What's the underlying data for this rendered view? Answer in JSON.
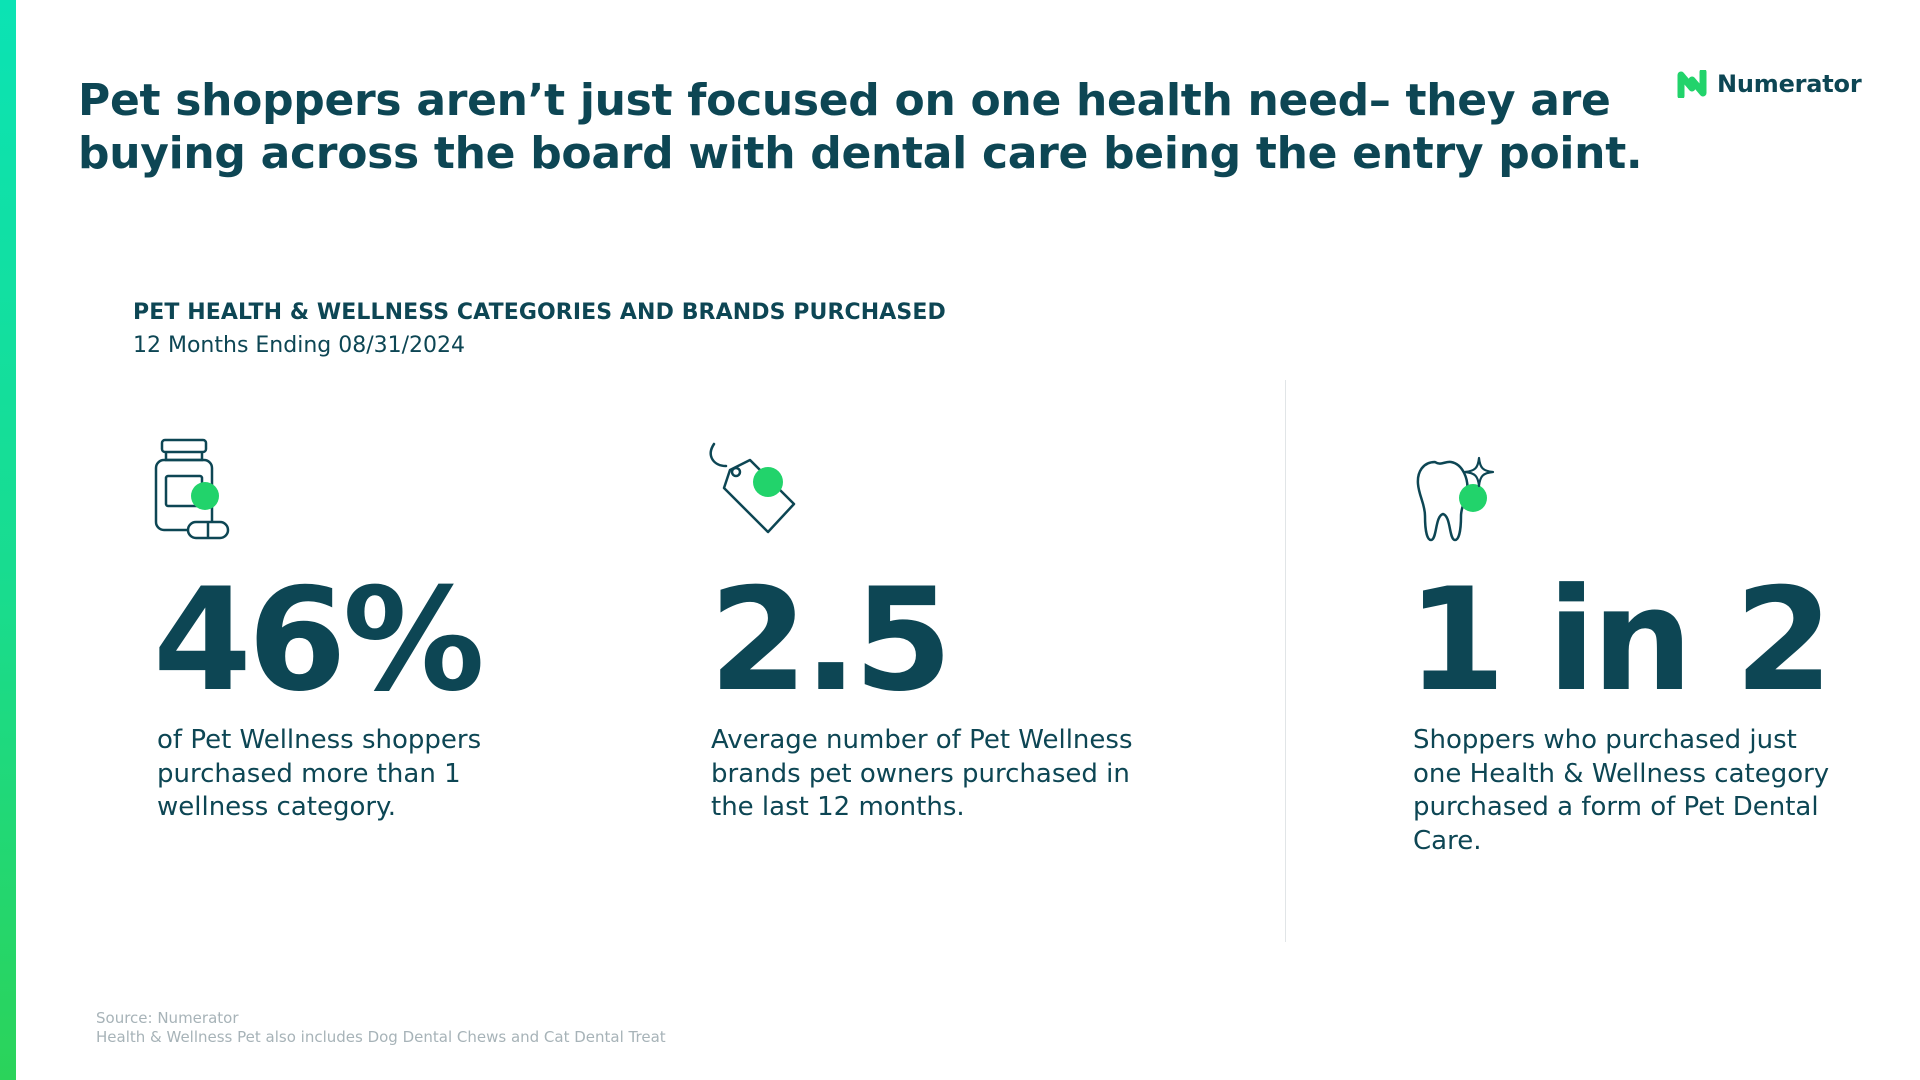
{
  "headline": {
    "line1": "Pet shoppers aren’t just focused on one health need– they are",
    "line2": "buying across the board with dental care being the entry point."
  },
  "brand": {
    "name": "Numerator",
    "logo_icon": "numerator-logo-icon",
    "accent_color": "#22d36b",
    "text_color": "#0d4654"
  },
  "section": {
    "title": "PET HEALTH & WELLNESS CATEGORIES AND BRANDS PURCHASED",
    "subtitle": "12 Months Ending 08/31/2024"
  },
  "stats": [
    {
      "icon": "medicine-bottle-icon",
      "value": "46%",
      "description": "of Pet Wellness shoppers purchased more than 1 wellness category."
    },
    {
      "icon": "price-tag-icon",
      "value": "2.5",
      "description": "Average number of Pet Wellness brands pet owners purchased in the last 12 months."
    },
    {
      "icon": "tooth-sparkle-icon",
      "value": "1 in 2",
      "description": "Shoppers who purchased just one Health & Wellness category purchased a form of Pet Dental Care."
    }
  ],
  "footnotes": {
    "source": "Source: Numerator",
    "note": "Health & Wellness Pet also includes Dog Dental Chews and Cat Dental Treat"
  }
}
